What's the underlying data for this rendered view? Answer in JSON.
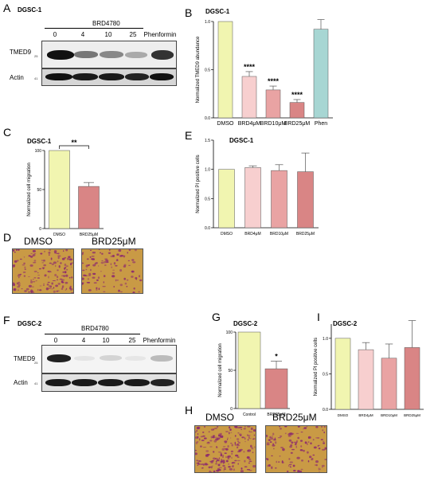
{
  "panels": {
    "A": {
      "letter": "A",
      "title": "DGSC-1",
      "drug": "BRD4780",
      "lanes": [
        "0",
        "4",
        "10",
        "25",
        "Phenformin"
      ],
      "rows": [
        "TMED9",
        "Actin"
      ],
      "mw": [
        "25",
        "41"
      ]
    },
    "B": {
      "letter": "B",
      "title": "DGSC-1"
    },
    "C": {
      "letter": "C",
      "title": "DGSC-1"
    },
    "D": {
      "letter": "D",
      "labels": [
        "DMSO",
        "BRD25μM"
      ]
    },
    "E": {
      "letter": "E",
      "title": "DGSC-1"
    },
    "F": {
      "letter": "F",
      "title": "DGSC-2",
      "drug": "BRD4780",
      "lanes": [
        "0",
        "4",
        "10",
        "25",
        "Phenformin"
      ],
      "rows": [
        "TMED9",
        "Actin"
      ],
      "mw": [
        "25",
        "41"
      ]
    },
    "G": {
      "letter": "G",
      "title": "DGSC-2"
    },
    "H": {
      "letter": "H",
      "labels": [
        "DMSO",
        "BRD25μM"
      ]
    },
    "I": {
      "letter": "I",
      "title": "DGSC-2"
    }
  },
  "colors": {
    "dmso": "#f1f5b0",
    "brd4": "#f7cfcf",
    "brd10": "#e9a3a3",
    "brd25": "#d98585",
    "phen": "#a7d6d3",
    "micro_bg": "#c99a45",
    "micro_cell": "#8c2a6e"
  },
  "chart_data": [
    {
      "id": "B",
      "type": "bar",
      "categories": [
        "DMSO",
        "BRD4μM",
        "BRD10μM",
        "BRD25μM",
        "Phen"
      ],
      "values": [
        1.0,
        0.43,
        0.29,
        0.16,
        0.92
      ],
      "errors": [
        0,
        0.05,
        0.04,
        0.03,
        0.1
      ],
      "significance": [
        "",
        "****",
        "****",
        "****",
        ""
      ],
      "ylabel": "Normalized TMED9 abundance",
      "ylim": [
        0,
        1.0
      ],
      "yticks": [
        "0.0",
        "0.5",
        "1.0"
      ]
    },
    {
      "id": "C",
      "type": "bar",
      "categories": [
        "DMSO",
        "BRD25μM"
      ],
      "values": [
        100,
        54
      ],
      "errors": [
        0,
        5
      ],
      "bracket": "**",
      "ylabel": "Normalized cell migration",
      "ylim": [
        0,
        100
      ],
      "yticks": [
        "0",
        "50",
        "100"
      ]
    },
    {
      "id": "E",
      "type": "bar",
      "categories": [
        "DMSO",
        "BRD4μM",
        "BRD10μM",
        "BRD25μM"
      ],
      "values": [
        1.0,
        1.03,
        0.98,
        0.96
      ],
      "errors": [
        0,
        0.03,
        0.1,
        0.32
      ],
      "ylabel": "Normalized PI positive cells",
      "ylim": [
        0,
        1.5
      ],
      "yticks": [
        "0.0",
        "0.5",
        "1.0",
        "1.5"
      ]
    },
    {
      "id": "G",
      "type": "bar",
      "categories": [
        "Control",
        "BRD25μM"
      ],
      "values": [
        100,
        52
      ],
      "errors": [
        0,
        10
      ],
      "significance": [
        "",
        "*"
      ],
      "ylabel": "Normalized cell migration",
      "ylim": [
        0,
        100
      ],
      "yticks": [
        "0",
        "50",
        "100"
      ]
    },
    {
      "id": "I",
      "type": "bar",
      "categories": [
        "DMSO",
        "BRD4μM",
        "BRD10μM",
        "BRD25μM"
      ],
      "values": [
        1.0,
        0.84,
        0.72,
        0.87
      ],
      "errors": [
        0,
        0.1,
        0.2,
        0.38
      ],
      "ylabel": "Normalized PI positive cells",
      "ylim": [
        0,
        1.2
      ],
      "yticks": [
        "0.0",
        "0.5",
        "1.0"
      ]
    }
  ]
}
